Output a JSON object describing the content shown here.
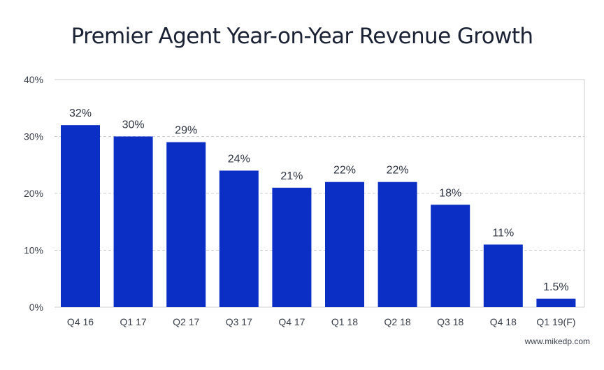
{
  "chart_data": {
    "type": "bar",
    "title": "Premier Agent Year-on-Year Revenue Growth",
    "xlabel": "",
    "ylabel": "",
    "categories": [
      "Q4 16",
      "Q1 17",
      "Q2 17",
      "Q3 17",
      "Q4 17",
      "Q1 18",
      "Q2 18",
      "Q3 18",
      "Q4 18",
      "Q1 19(F)"
    ],
    "values": [
      32,
      30,
      29,
      24,
      21,
      22,
      22,
      18,
      11,
      1.5
    ],
    "data_labels": [
      "32%",
      "30%",
      "29%",
      "24%",
      "21%",
      "22%",
      "22%",
      "18%",
      "11%",
      "1.5%"
    ],
    "ylim": [
      0,
      40
    ],
    "yticks": [
      0,
      10,
      20,
      30,
      40
    ],
    "ytick_labels": [
      "0%",
      "10%",
      "20%",
      "30%",
      "40%"
    ],
    "grid": true,
    "bar_color": "#0b2fc4",
    "grid_color": "#cfcfcf",
    "source": "www.mikedp.com"
  }
}
